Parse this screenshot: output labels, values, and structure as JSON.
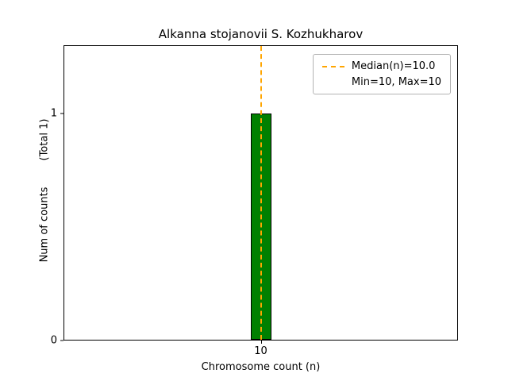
{
  "chart_data": {
    "type": "bar",
    "title": "Alkanna stojanovii S. Kozhukharov",
    "xlabel": "Chromosome count (n)",
    "ylabel": "Num of counts        (Total 1)",
    "categories": [
      10
    ],
    "values": [
      1
    ],
    "xticks": [
      10
    ],
    "yticks": [
      0,
      1
    ],
    "ylim": [
      0,
      1.3
    ],
    "median": 10.0,
    "min": 10,
    "max": 10,
    "total": 1,
    "bar_color": "#008000",
    "bar_edge_color": "#000000",
    "median_line_color": "#ffa500",
    "grid": false,
    "legend_position": "upper right",
    "legend": [
      "Median(n)=10.0",
      "Min=10, Max=10"
    ]
  }
}
